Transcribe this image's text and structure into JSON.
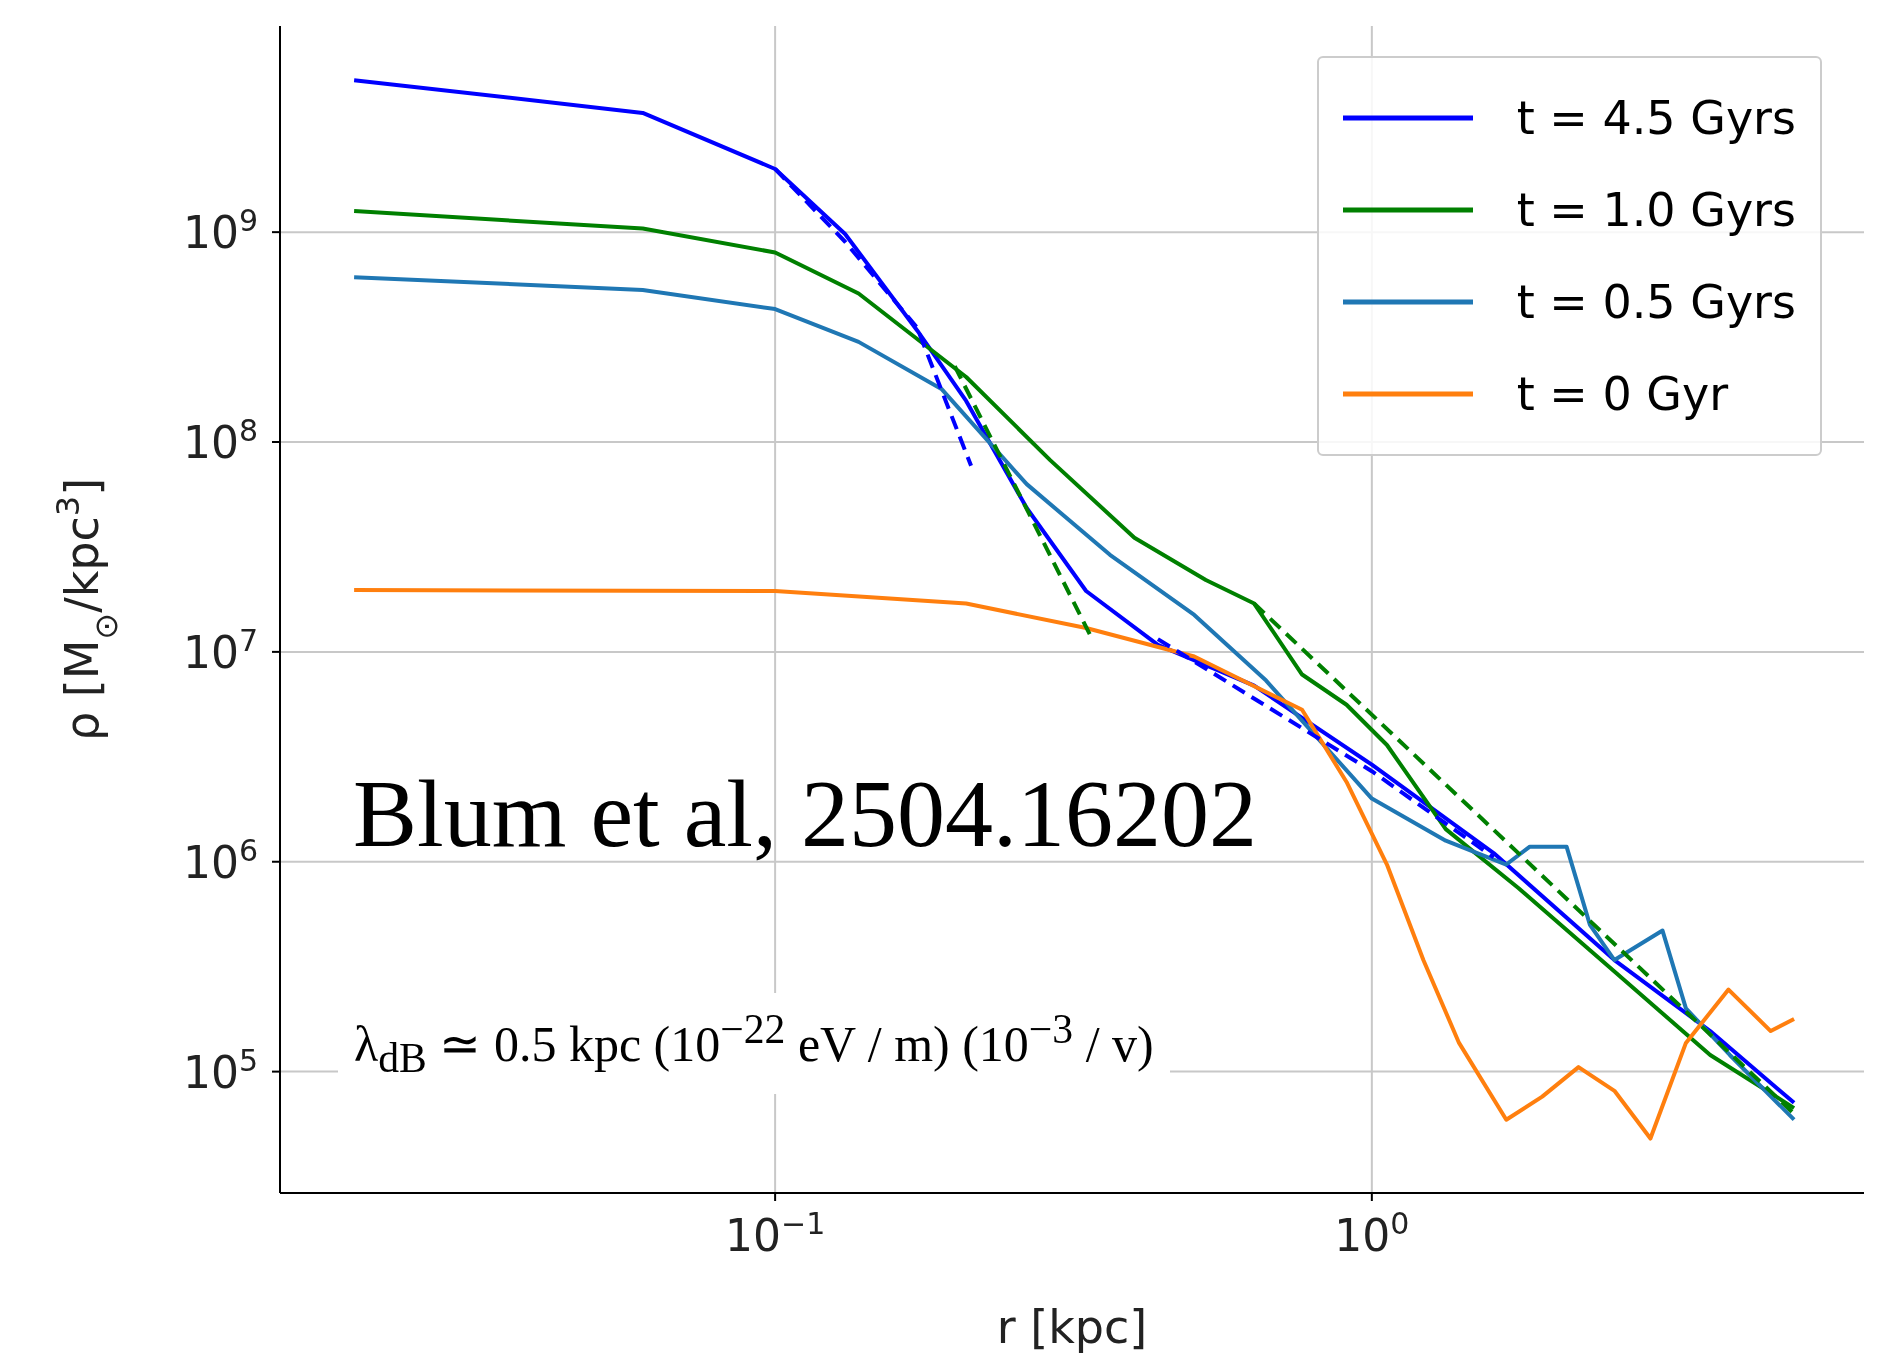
{
  "chart_data": {
    "type": "line",
    "xlabel": "r [kpc]",
    "ylabel": "ρ [M$_{⊙}$/kpc$^{3}$]",
    "log": "xy",
    "grid": true,
    "legend": "top right",
    "marker": "none",
    "xlim": [
      0.0148,
      6.68
    ],
    "ylim": [
      26400,
      9600000000
    ],
    "xticks": [
      {
        "value": 0.1,
        "label": "10$^{−1}$"
      },
      {
        "value": 1,
        "label": "10$^{0}$"
      }
    ],
    "yticks": [
      {
        "value": 100000,
        "label": "10$^{5}$"
      },
      {
        "value": 1000000,
        "label": "10$^{6}$"
      },
      {
        "value": 10000000,
        "label": "10$^{7}$"
      },
      {
        "value": 100000000,
        "label": "10$^{8}$"
      },
      {
        "value": 1000000000,
        "label": "10$^{9}$"
      }
    ],
    "annotations": [
      "Blum et al, 2504.16202",
      "λ$_{dB}$ ≃ 0.5 kpc (10$^{−22}$ eV / m) (10$^{−3}$ / v)"
    ],
    "series": [
      {
        "name": "t = 4.5 Gyrs",
        "color": "#0000ff",
        "line_style": "solid",
        "x": [
          0.0197,
          0.06,
          0.1,
          0.131,
          0.173,
          0.209,
          0.264,
          0.332,
          0.438,
          0.635,
          1,
          1.6,
          2.55,
          3.69,
          5.1
        ],
        "values": [
          5300000000,
          3700000000,
          2000000000,
          980000000,
          340000000,
          157000000,
          48500000,
          19500000,
          10800000,
          6900000,
          2900000,
          1100000,
          340000,
          156000,
          71000
        ]
      },
      {
        "name": "t = 1.0 Gyrs",
        "color": "#008000",
        "line_style": "solid",
        "x": [
          0.0197,
          0.06,
          0.1,
          0.138,
          0.209,
          0.289,
          0.4,
          0.527,
          0.635,
          0.764,
          0.907,
          1.06,
          1.33,
          1.76,
          2.55,
          3.69,
          5.1
        ],
        "values": [
          1260000000,
          1040000000,
          800000000,
          510000000,
          204000000,
          82000000,
          35000000,
          22000000,
          17000000,
          7800000,
          5600000,
          3600000,
          1430000,
          750000,
          300000,
          120000,
          67000
        ]
      },
      {
        "name": "t = 0.5 Gyrs",
        "color": "#1f77b4",
        "line_style": "solid",
        "x": [
          0.0197,
          0.06,
          0.1,
          0.138,
          0.19,
          0.264,
          0.364,
          0.504,
          0.665,
          1,
          1.33,
          1.68,
          1.84,
          2.12,
          2.32,
          2.55,
          3.07,
          3.36,
          3.98,
          5.1
        ],
        "values": [
          610000000,
          530000000,
          430000000,
          300000000,
          179000000,
          63000000,
          29000000,
          15000000,
          7300000,
          2000000,
          1260000,
          970000,
          1180000,
          1180000,
          500000,
          340000,
          470000,
          200000,
          120000,
          59000
        ]
      },
      {
        "name": "t = 0 Gyr",
        "color": "#ff7f0e",
        "line_style": "solid",
        "x": [
          0.0197,
          0.1,
          0.209,
          0.332,
          0.504,
          0.764,
          0.907,
          1.06,
          1.22,
          1.4,
          1.68,
          1.93,
          2.22,
          2.55,
          2.93,
          3.36,
          3.96,
          4.66,
          5.1
        ],
        "values": [
          19700000,
          19500000,
          17000000,
          13000000,
          9500000,
          5300000,
          2400000,
          970000,
          340000,
          137000,
          59000,
          76000,
          105000,
          81000,
          48000,
          137000,
          246000,
          156000,
          178000
        ]
      },
      {
        "color": "#0000ff",
        "line_style": "dashed",
        "x": [
          0.1,
          0.131,
          0.173,
          0.213
        ],
        "values": [
          2000000000,
          900000000,
          350000000,
          77000000
        ]
      },
      {
        "color": "#008000",
        "line_style": "dashed",
        "x": [
          0.2,
          0.34
        ],
        "values": [
          230000000,
          11500000
        ]
      },
      {
        "color": "#0000ff",
        "line_style": "dashed",
        "x": [
          0.438,
          1,
          1.6
        ],
        "values": [
          11500000,
          2700000,
          1050000
        ]
      },
      {
        "color": "#008000",
        "line_style": "dashed",
        "x": [
          0.635,
          5.1
        ],
        "values": [
          17000000,
          63000
        ]
      }
    ]
  }
}
